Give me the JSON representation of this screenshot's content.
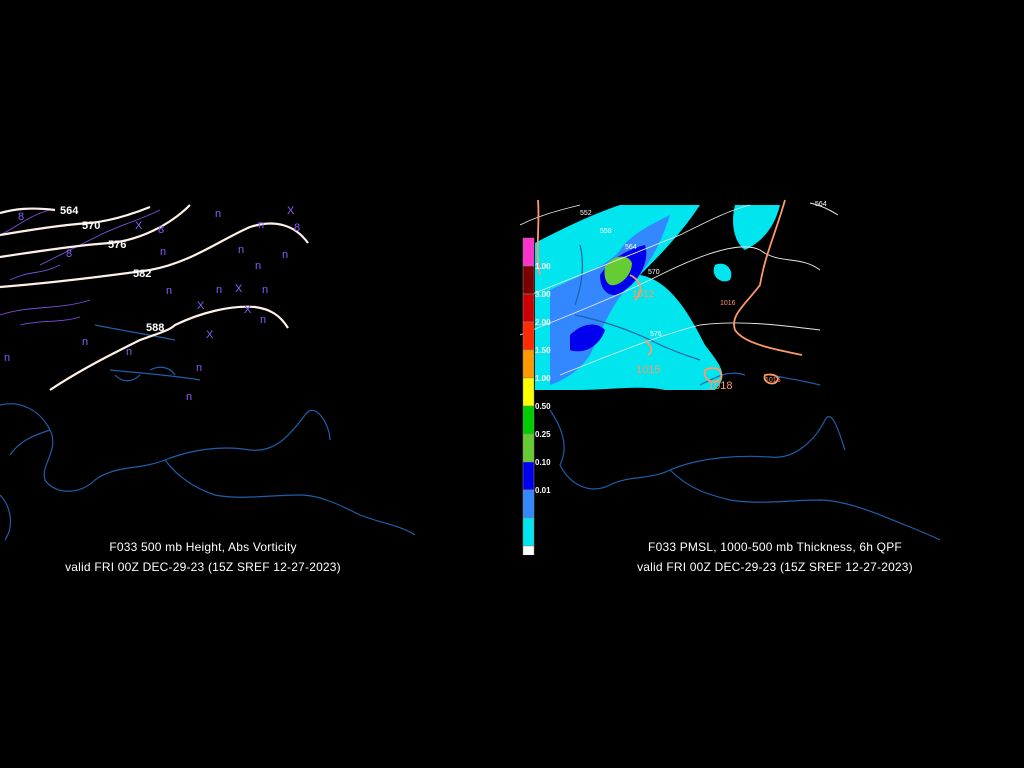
{
  "left_panel": {
    "caption_line1": "F033 500 mb Height, Abs Vorticity",
    "caption_line2": "valid FRI 00Z DEC-29-23 (15Z SREF 12-27-2023)",
    "height_labels": [
      "564",
      "570",
      "576",
      "582",
      "588"
    ],
    "vorticity_marks": [
      "n",
      "X",
      "8"
    ]
  },
  "right_panel": {
    "caption_line1": "F033 PMSL, 1000-500 mb Thickness, 6h QPF",
    "caption_line2": "valid FRI 00Z DEC-29-23 (15Z SREF 12-27-2023)",
    "thickness_labels": [
      "552",
      "558",
      "564",
      "570",
      "576",
      "564"
    ],
    "isobar_labels": [
      "1012",
      "1016",
      "1015",
      "1018",
      "1016"
    ],
    "legend": {
      "labels": [
        "1.00",
        "3.00",
        "2.00",
        "1.50",
        "1.00",
        "0.50",
        "0.25",
        "0.10",
        "0.01"
      ],
      "colors": [
        "#ff33cc",
        "#7a0000",
        "#cc0000",
        "#ff2a00",
        "#ff9900",
        "#ffff00",
        "#00cc00",
        "#66cc33",
        "#0000ee",
        "#3388ff",
        "#00e5ee",
        "#ffffff"
      ]
    },
    "colors": {
      "qpf_light": "#00e5ee",
      "qpf_mid": "#3388ff",
      "qpf_heavy": "#0000ee",
      "qpf_green": "#66cc33",
      "isobar": "#ff9966",
      "coast": "#1f5fa8"
    }
  }
}
